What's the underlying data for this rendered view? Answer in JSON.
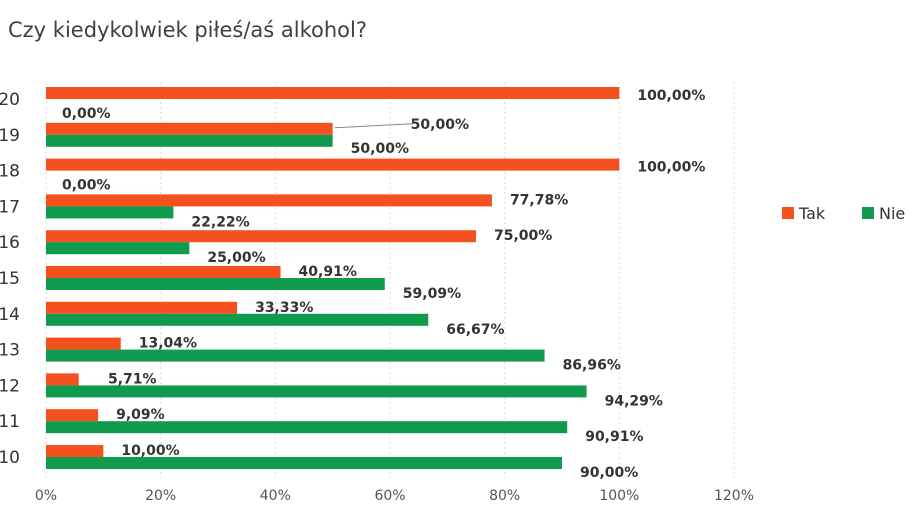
{
  "chart_data": {
    "type": "bar",
    "orientation": "horizontal",
    "title": "Czy kiedykolwiek piłeś/aś alkohol?",
    "categories": [
      "20",
      "19",
      "18",
      "17",
      "16",
      "15",
      "14",
      "13",
      "12",
      "11",
      "10"
    ],
    "series": [
      {
        "name": "Tak",
        "color": "#f4511e",
        "values": [
          100,
          50,
          100,
          77.78,
          75,
          40.91,
          33.33,
          13.04,
          5.71,
          9.09,
          10
        ],
        "labels": [
          "100,00%",
          "50,00%",
          "100,00%",
          "77,78%",
          "75,00%",
          "40,91%",
          "33,33%",
          "13,04%",
          "5,71%",
          "9,09%",
          "10,00%"
        ]
      },
      {
        "name": "Nie",
        "color": "#109a4e",
        "values": [
          0,
          50,
          0,
          22.22,
          25,
          59.09,
          66.67,
          86.96,
          94.29,
          90.91,
          90
        ],
        "labels": [
          "0,00%",
          "50,00%",
          "0,00%",
          "22,22%",
          "25,00%",
          "59,09%",
          "66,67%",
          "86,96%",
          "94,29%",
          "90,91%",
          "90,00%"
        ]
      }
    ],
    "xlim": [
      0,
      120
    ],
    "xticks": [
      "0%",
      "20%",
      "40%",
      "60%",
      "80%",
      "100%",
      "120%"
    ],
    "grid": true,
    "legend_position": "right"
  }
}
